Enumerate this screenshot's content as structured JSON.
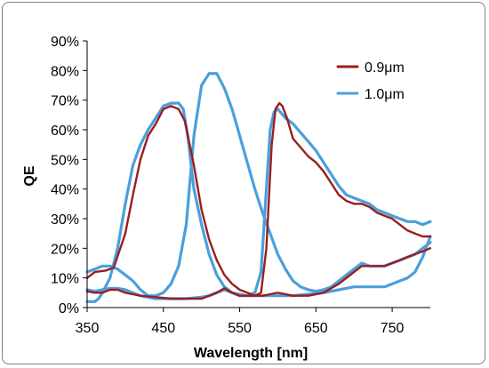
{
  "chart_data": {
    "type": "line",
    "title": "",
    "xlabel": "Wavelength [nm]",
    "ylabel": "QE",
    "xlim": [
      350,
      800
    ],
    "ylim": [
      0,
      90
    ],
    "xticks": [
      350,
      450,
      550,
      650,
      750
    ],
    "xtick_labels": [
      "350",
      "450",
      "550",
      "650",
      "750"
    ],
    "yticks": [
      0,
      10,
      20,
      30,
      40,
      50,
      60,
      70,
      80,
      90
    ],
    "ytick_labels": [
      "0%",
      "10%",
      "20%",
      "30%",
      "40%",
      "50%",
      "60%",
      "70%",
      "80%",
      "90%"
    ],
    "grid": false,
    "legend_position": "top-right",
    "series": [
      {
        "name": "0.9μm",
        "color": "#9b1e1e",
        "curves": [
          [
            [
              350,
              10
            ],
            [
              360,
              12
            ],
            [
              375,
              12.5
            ],
            [
              385,
              13.5
            ],
            [
              400,
              25
            ],
            [
              410,
              38
            ],
            [
              420,
              50
            ],
            [
              430,
              58
            ],
            [
              440,
              62
            ],
            [
              450,
              67
            ],
            [
              460,
              68
            ],
            [
              470,
              67
            ],
            [
              478,
              63
            ],
            [
              490,
              48
            ],
            [
              500,
              33
            ],
            [
              510,
              23
            ],
            [
              520,
              16
            ],
            [
              530,
              11
            ],
            [
              540,
              8
            ],
            [
              550,
              6
            ],
            [
              560,
              5
            ],
            [
              570,
              4
            ],
            [
              580,
              4
            ],
            [
              590,
              4.5
            ],
            [
              600,
              5
            ],
            [
              620,
              4
            ],
            [
              640,
              4
            ],
            [
              660,
              5
            ],
            [
              680,
              8
            ],
            [
              700,
              12
            ],
            [
              710,
              14
            ],
            [
              720,
              14
            ],
            [
              740,
              14
            ],
            [
              760,
              16
            ],
            [
              770,
              17
            ],
            [
              780,
              18
            ],
            [
              790,
              19
            ],
            [
              800,
              20
            ]
          ],
          [
            [
              350,
              5.5
            ],
            [
              360,
              5
            ],
            [
              370,
              5
            ],
            [
              380,
              6
            ],
            [
              390,
              6
            ],
            [
              400,
              5
            ],
            [
              420,
              4
            ],
            [
              440,
              3.5
            ],
            [
              460,
              3
            ],
            [
              480,
              3
            ],
            [
              500,
              3
            ],
            [
              510,
              4
            ],
            [
              520,
              5
            ],
            [
              530,
              6.5
            ],
            [
              540,
              5
            ],
            [
              550,
              4
            ],
            [
              560,
              4
            ],
            [
              570,
              4
            ],
            [
              578,
              5
            ],
            [
              585,
              20
            ],
            [
              592,
              55
            ],
            [
              597,
              67
            ],
            [
              602,
              69
            ],
            [
              606,
              68
            ],
            [
              612,
              64
            ],
            [
              620,
              57
            ],
            [
              630,
              54
            ],
            [
              640,
              51
            ],
            [
              650,
              49
            ],
            [
              660,
              46
            ],
            [
              670,
              42
            ],
            [
              680,
              38
            ],
            [
              690,
              36
            ],
            [
              700,
              35
            ],
            [
              710,
              35
            ],
            [
              720,
              34
            ],
            [
              730,
              32
            ],
            [
              740,
              31
            ],
            [
              750,
              30
            ],
            [
              760,
              28
            ],
            [
              770,
              26
            ],
            [
              780,
              25
            ],
            [
              790,
              24
            ],
            [
              800,
              24
            ]
          ]
        ]
      },
      {
        "name": "1.0μm",
        "color": "#4a9fdd",
        "curves": [
          [
            [
              350,
              12
            ],
            [
              360,
              13
            ],
            [
              370,
              14
            ],
            [
              380,
              14
            ],
            [
              390,
              13
            ],
            [
              400,
              11
            ],
            [
              410,
              9
            ],
            [
              420,
              6
            ],
            [
              430,
              4
            ],
            [
              440,
              4
            ],
            [
              450,
              5
            ],
            [
              460,
              8
            ],
            [
              470,
              14
            ],
            [
              480,
              28
            ],
            [
              490,
              58
            ],
            [
              500,
              75
            ],
            [
              510,
              79
            ],
            [
              520,
              79
            ],
            [
              530,
              74
            ],
            [
              540,
              67
            ],
            [
              550,
              58
            ],
            [
              560,
              49
            ],
            [
              570,
              40
            ],
            [
              580,
              32
            ],
            [
              590,
              25
            ],
            [
              600,
              18
            ],
            [
              610,
              13
            ],
            [
              620,
              9
            ],
            [
              630,
              7
            ],
            [
              640,
              6
            ],
            [
              650,
              5.5
            ],
            [
              660,
              6
            ],
            [
              670,
              7
            ],
            [
              680,
              9
            ],
            [
              700,
              13
            ],
            [
              710,
              15
            ],
            [
              720,
              14
            ],
            [
              740,
              14
            ],
            [
              760,
              16
            ],
            [
              770,
              17
            ],
            [
              780,
              18
            ],
            [
              790,
              20
            ],
            [
              800,
              22
            ]
          ],
          [
            [
              350,
              2
            ],
            [
              360,
              2
            ],
            [
              365,
              3
            ],
            [
              370,
              5
            ],
            [
              380,
              10
            ],
            [
              390,
              20
            ],
            [
              400,
              35
            ],
            [
              410,
              48
            ],
            [
              420,
              55
            ],
            [
              430,
              60
            ],
            [
              440,
              64
            ],
            [
              450,
              68
            ],
            [
              460,
              69
            ],
            [
              470,
              69
            ],
            [
              476,
              67
            ],
            [
              482,
              58
            ],
            [
              490,
              40
            ],
            [
              500,
              28
            ],
            [
              510,
              18
            ],
            [
              520,
              11
            ],
            [
              530,
              7
            ],
            [
              540,
              5
            ],
            [
              550,
              4
            ],
            [
              560,
              4
            ],
            [
              570,
              5
            ],
            [
              578,
              12
            ],
            [
              585,
              40
            ],
            [
              590,
              60
            ],
            [
              595,
              66
            ],
            [
              600,
              67
            ],
            [
              610,
              64
            ],
            [
              620,
              62
            ],
            [
              630,
              59
            ],
            [
              640,
              56
            ],
            [
              650,
              53
            ],
            [
              660,
              49
            ],
            [
              670,
              45
            ],
            [
              680,
              41
            ],
            [
              690,
              38
            ],
            [
              700,
              37
            ],
            [
              710,
              36
            ],
            [
              720,
              35
            ],
            [
              730,
              33
            ],
            [
              740,
              32
            ],
            [
              750,
              31
            ],
            [
              760,
              30
            ],
            [
              770,
              29
            ],
            [
              780,
              29
            ],
            [
              790,
              28
            ],
            [
              800,
              29
            ]
          ],
          [
            [
              350,
              6
            ],
            [
              360,
              5.5
            ],
            [
              370,
              6
            ],
            [
              380,
              6.5
            ],
            [
              390,
              6.5
            ],
            [
              400,
              6
            ],
            [
              420,
              4
            ],
            [
              440,
              3
            ],
            [
              460,
              3
            ],
            [
              480,
              3
            ],
            [
              500,
              3.5
            ],
            [
              510,
              4
            ],
            [
              520,
              5
            ],
            [
              530,
              6
            ],
            [
              540,
              5
            ],
            [
              560,
              4
            ],
            [
              580,
              4
            ],
            [
              600,
              4
            ],
            [
              620,
              4
            ],
            [
              640,
              4.5
            ],
            [
              660,
              5
            ],
            [
              680,
              6
            ],
            [
              700,
              7
            ],
            [
              720,
              7
            ],
            [
              740,
              7
            ],
            [
              760,
              9
            ],
            [
              770,
              10
            ],
            [
              780,
              12
            ],
            [
              790,
              17
            ],
            [
              800,
              24
            ]
          ]
        ]
      }
    ]
  }
}
